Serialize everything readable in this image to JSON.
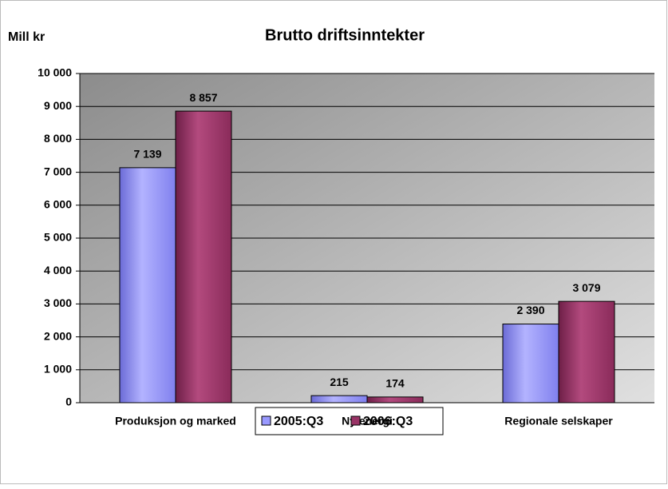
{
  "chart_data": {
    "type": "bar",
    "title": "Brutto driftsinntekter",
    "y_label": "Mill kr",
    "categories": [
      "Produksjon og marked",
      "Ny energi",
      "Regionale selskaper"
    ],
    "series": [
      {
        "name": "2005:Q3",
        "color": "#9999ff",
        "values": [
          7139,
          215,
          2390
        ],
        "value_labels": [
          "7 139",
          "215",
          "2 390"
        ]
      },
      {
        "name": "2006:Q3",
        "color": "#993366",
        "values": [
          8857,
          174,
          3079
        ],
        "value_labels": [
          "8 857",
          "174",
          "3 079"
        ]
      }
    ],
    "ylim": [
      0,
      10000
    ],
    "yticks": [
      0,
      {
        "value": 1000,
        "label": "1 000"
      },
      {
        "value": 2000,
        "label": "2 000"
      },
      {
        "value": 3000,
        "label": "3 000"
      },
      {
        "value": 4000,
        "label": "4 000"
      },
      {
        "value": 5000,
        "label": "5 000"
      },
      {
        "value": 6000,
        "label": "6 000"
      },
      {
        "value": 7000,
        "label": "7 000"
      },
      {
        "value": 8000,
        "label": "8 000"
      },
      {
        "value": 9000,
        "label": "9 000"
      },
      {
        "value": 10000,
        "label": "10 000"
      }
    ],
    "grid": true,
    "legend": "bottom"
  }
}
